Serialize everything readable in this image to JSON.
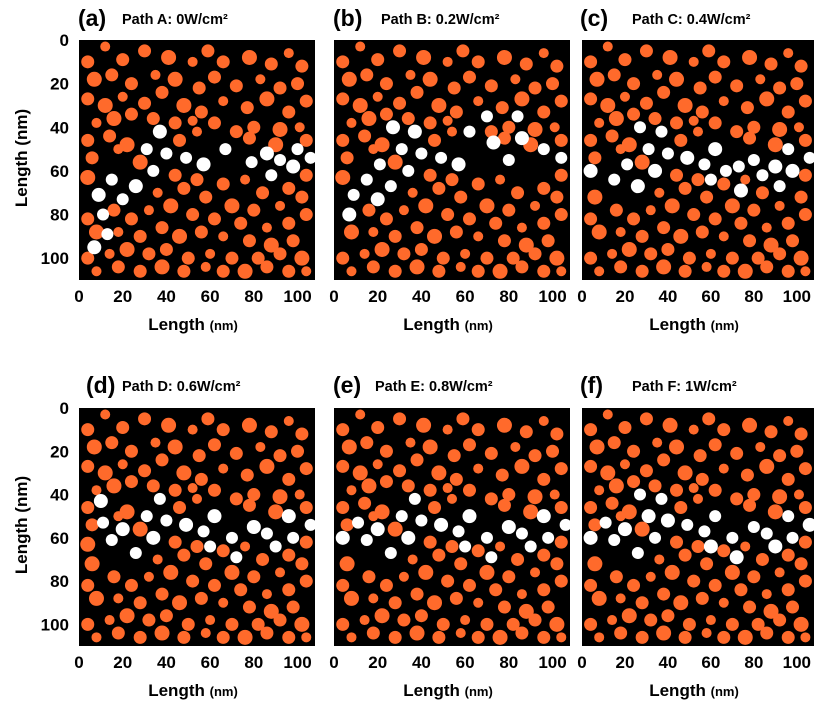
{
  "colors": {
    "background": "#000000",
    "matrix_particle": "#ff6a2b",
    "path_particle": "#ffffff"
  },
  "chart_data": [
    {
      "type": "scatter",
      "panel": "(a)",
      "title": "Path A: 0W/cm²",
      "xlabel": "Length",
      "xlabel_unit": "(nm)",
      "ylabel": "Length (nm)",
      "xlim": [
        0,
        108
      ],
      "ylim": [
        110,
        0
      ],
      "xticks": [
        "0",
        "20",
        "40",
        "60",
        "80",
        "100"
      ],
      "yticks": [
        "0",
        "20",
        "40",
        "60",
        "80",
        "100"
      ],
      "path_points": [
        [
          7,
          95
        ],
        [
          13,
          89
        ],
        [
          11,
          80
        ],
        [
          9,
          71
        ],
        [
          15,
          64
        ],
        [
          20,
          73
        ],
        [
          26,
          67
        ],
        [
          31,
          50
        ],
        [
          34,
          60
        ],
        [
          37,
          42
        ],
        [
          40,
          52
        ],
        [
          49,
          54
        ],
        [
          57,
          57
        ],
        [
          67,
          50
        ],
        [
          79,
          56
        ],
        [
          86,
          52
        ],
        [
          88,
          62
        ],
        [
          92,
          55
        ],
        [
          98,
          58
        ],
        [
          100,
          50
        ],
        [
          106,
          54
        ]
      ]
    },
    {
      "type": "scatter",
      "panel": "(b)",
      "title": "Path B: 0.2W/cm²",
      "xlabel": "Length",
      "xlabel_unit": "(nm)",
      "ylabel": "Length (nm)",
      "xlim": [
        0,
        108
      ],
      "ylim": [
        110,
        0
      ],
      "xticks": [
        "0",
        "20",
        "40",
        "60",
        "80",
        "100"
      ],
      "yticks": [
        "0",
        "20",
        "40",
        "60",
        "80",
        "100"
      ],
      "path_points": [
        [
          7,
          80
        ],
        [
          9,
          71
        ],
        [
          15,
          64
        ],
        [
          20,
          73
        ],
        [
          26,
          67
        ],
        [
          21,
          57
        ],
        [
          27,
          40
        ],
        [
          31,
          50
        ],
        [
          34,
          60
        ],
        [
          37,
          42
        ],
        [
          40,
          52
        ],
        [
          49,
          54
        ],
        [
          57,
          57
        ],
        [
          62,
          42
        ],
        [
          70,
          35
        ],
        [
          73,
          47
        ],
        [
          80,
          55
        ],
        [
          84,
          35
        ],
        [
          86,
          45
        ],
        [
          96,
          50
        ],
        [
          104,
          54
        ]
      ]
    },
    {
      "type": "scatter",
      "panel": "(c)",
      "title": "Path C: 0.4W/cm²",
      "xlabel": "Length",
      "xlabel_unit": "(nm)",
      "ylabel": "Length (nm)",
      "xlim": [
        0,
        108
      ],
      "ylim": [
        110,
        0
      ],
      "xticks": [
        "0",
        "20",
        "40",
        "60",
        "80",
        "100"
      ],
      "yticks": [
        "0",
        "20",
        "40",
        "60",
        "80",
        "100"
      ],
      "path_points": [
        [
          4,
          60
        ],
        [
          15,
          64
        ],
        [
          21,
          57
        ],
        [
          26,
          67
        ],
        [
          27,
          40
        ],
        [
          31,
          50
        ],
        [
          34,
          60
        ],
        [
          37,
          42
        ],
        [
          40,
          52
        ],
        [
          49,
          54
        ],
        [
          57,
          57
        ],
        [
          60,
          64
        ],
        [
          62,
          50
        ],
        [
          67,
          60
        ],
        [
          73,
          58
        ],
        [
          74,
          69
        ],
        [
          80,
          55
        ],
        [
          84,
          62
        ],
        [
          90,
          58
        ],
        [
          92,
          67
        ],
        [
          96,
          50
        ],
        [
          98,
          60
        ],
        [
          106,
          54
        ]
      ]
    },
    {
      "type": "scatter",
      "panel": "(d)",
      "title": "Path D: 0.6W/cm²",
      "xlabel": "Length",
      "xlabel_unit": "(nm)",
      "ylabel": "Length (nm)",
      "xlim": [
        0,
        108
      ],
      "ylim": [
        110,
        0
      ],
      "xticks": [
        "0",
        "20",
        "40",
        "60",
        "80",
        "100"
      ],
      "yticks": [
        "0",
        "20",
        "40",
        "60",
        "80",
        "100"
      ],
      "path_points": [
        [
          10,
          43
        ],
        [
          11,
          53
        ],
        [
          15,
          61
        ],
        [
          20,
          56
        ],
        [
          26,
          67
        ],
        [
          31,
          50
        ],
        [
          34,
          60
        ],
        [
          37,
          42
        ],
        [
          40,
          52
        ],
        [
          49,
          54
        ],
        [
          57,
          57
        ],
        [
          60,
          64
        ],
        [
          62,
          50
        ],
        [
          70,
          60
        ],
        [
          72,
          69
        ],
        [
          80,
          55
        ],
        [
          86,
          58
        ],
        [
          90,
          64
        ],
        [
          96,
          50
        ],
        [
          98,
          60
        ],
        [
          106,
          54
        ]
      ]
    },
    {
      "type": "scatter",
      "panel": "(e)",
      "title": "Path E: 0.8W/cm²",
      "xlabel": "Length",
      "xlabel_unit": "(nm)",
      "ylabel": "Length (nm)",
      "xlim": [
        0,
        108
      ],
      "ylim": [
        110,
        0
      ],
      "xticks": [
        "0",
        "20",
        "40",
        "60",
        "80",
        "100"
      ],
      "yticks": [
        "0",
        "20",
        "40",
        "60",
        "80",
        "100"
      ],
      "path_points": [
        [
          4,
          60
        ],
        [
          11,
          53
        ],
        [
          15,
          61
        ],
        [
          20,
          56
        ],
        [
          26,
          67
        ],
        [
          31,
          50
        ],
        [
          34,
          60
        ],
        [
          37,
          42
        ],
        [
          40,
          52
        ],
        [
          49,
          54
        ],
        [
          57,
          57
        ],
        [
          60,
          64
        ],
        [
          62,
          50
        ],
        [
          70,
          60
        ],
        [
          72,
          69
        ],
        [
          80,
          55
        ],
        [
          86,
          58
        ],
        [
          90,
          64
        ],
        [
          96,
          50
        ],
        [
          98,
          60
        ],
        [
          106,
          54
        ]
      ]
    },
    {
      "type": "scatter",
      "panel": "(f)",
      "title": "Path F: 1W/cm²",
      "xlabel": "Length",
      "xlabel_unit": "(nm)",
      "ylabel": "Length (nm)",
      "xlim": [
        0,
        108
      ],
      "ylim": [
        110,
        0
      ],
      "xticks": [
        "0",
        "20",
        "40",
        "60",
        "80",
        "100"
      ],
      "yticks": [
        "0",
        "20",
        "40",
        "60",
        "80",
        "100"
      ],
      "path_points": [
        [
          4,
          60
        ],
        [
          11,
          53
        ],
        [
          15,
          61
        ],
        [
          20,
          56
        ],
        [
          26,
          67
        ],
        [
          27,
          40
        ],
        [
          31,
          50
        ],
        [
          34,
          60
        ],
        [
          37,
          42
        ],
        [
          40,
          52
        ],
        [
          49,
          54
        ],
        [
          57,
          57
        ],
        [
          60,
          64
        ],
        [
          62,
          50
        ],
        [
          70,
          60
        ],
        [
          72,
          69
        ],
        [
          80,
          55
        ],
        [
          86,
          58
        ],
        [
          90,
          64
        ],
        [
          96,
          50
        ],
        [
          98,
          60
        ],
        [
          106,
          54
        ]
      ]
    }
  ],
  "matrix_points": [
    [
      12,
      3
    ],
    [
      20,
      9
    ],
    [
      4,
      10
    ],
    [
      30,
      5
    ],
    [
      41,
      8
    ],
    [
      52,
      10
    ],
    [
      59,
      5
    ],
    [
      66,
      10
    ],
    [
      78,
      8
    ],
    [
      88,
      11
    ],
    [
      96,
      6
    ],
    [
      102,
      12
    ],
    [
      7,
      18
    ],
    [
      15,
      16
    ],
    [
      24,
      20
    ],
    [
      35,
      16
    ],
    [
      44,
      18
    ],
    [
      55,
      22
    ],
    [
      62,
      17
    ],
    [
      72,
      21
    ],
    [
      83,
      18
    ],
    [
      92,
      22
    ],
    [
      100,
      20
    ],
    [
      4,
      27
    ],
    [
      12,
      30
    ],
    [
      20,
      26
    ],
    [
      30,
      29
    ],
    [
      38,
      24
    ],
    [
      48,
      30
    ],
    [
      56,
      33
    ],
    [
      66,
      28
    ],
    [
      77,
      31
    ],
    [
      86,
      27
    ],
    [
      96,
      33
    ],
    [
      104,
      28
    ],
    [
      8,
      38
    ],
    [
      16,
      36
    ],
    [
      24,
      34
    ],
    [
      34,
      36
    ],
    [
      44,
      38
    ],
    [
      54,
      42
    ],
    [
      62,
      38
    ],
    [
      72,
      42
    ],
    [
      80,
      40
    ],
    [
      92,
      41
    ],
    [
      101,
      40
    ],
    [
      4,
      46
    ],
    [
      14,
      44
    ],
    [
      22,
      48
    ],
    [
      46,
      46
    ],
    [
      52,
      37
    ],
    [
      78,
      45
    ],
    [
      90,
      48
    ],
    [
      104,
      46
    ],
    [
      6,
      54
    ],
    [
      18,
      50
    ],
    [
      28,
      56
    ],
    [
      44,
      62
    ],
    [
      54,
      64
    ],
    [
      66,
      66
    ],
    [
      76,
      64
    ],
    [
      84,
      70
    ],
    [
      96,
      68
    ],
    [
      104,
      62
    ],
    [
      4,
      63
    ],
    [
      36,
      70
    ],
    [
      48,
      68
    ],
    [
      58,
      72
    ],
    [
      70,
      76
    ],
    [
      80,
      78
    ],
    [
      92,
      76
    ],
    [
      102,
      72
    ],
    [
      6,
      72
    ],
    [
      16,
      78
    ],
    [
      24,
      82
    ],
    [
      32,
      78
    ],
    [
      42,
      76
    ],
    [
      52,
      80
    ],
    [
      62,
      82
    ],
    [
      74,
      84
    ],
    [
      86,
      86
    ],
    [
      96,
      84
    ],
    [
      104,
      80
    ],
    [
      4,
      82
    ],
    [
      8,
      88
    ],
    [
      18,
      88
    ],
    [
      28,
      90
    ],
    [
      38,
      86
    ],
    [
      46,
      90
    ],
    [
      56,
      88
    ],
    [
      66,
      90
    ],
    [
      78,
      92
    ],
    [
      88,
      94
    ],
    [
      98,
      92
    ],
    [
      4,
      100
    ],
    [
      14,
      98
    ],
    [
      22,
      96
    ],
    [
      32,
      98
    ],
    [
      40,
      96
    ],
    [
      50,
      100
    ],
    [
      60,
      98
    ],
    [
      70,
      100
    ],
    [
      82,
      100
    ],
    [
      92,
      98
    ],
    [
      102,
      100
    ],
    [
      8,
      106
    ],
    [
      18,
      104
    ],
    [
      28,
      106
    ],
    [
      38,
      104
    ],
    [
      48,
      106
    ],
    [
      58,
      104
    ],
    [
      66,
      106
    ],
    [
      76,
      106
    ],
    [
      86,
      104
    ],
    [
      96,
      106
    ],
    [
      104,
      106
    ]
  ]
}
